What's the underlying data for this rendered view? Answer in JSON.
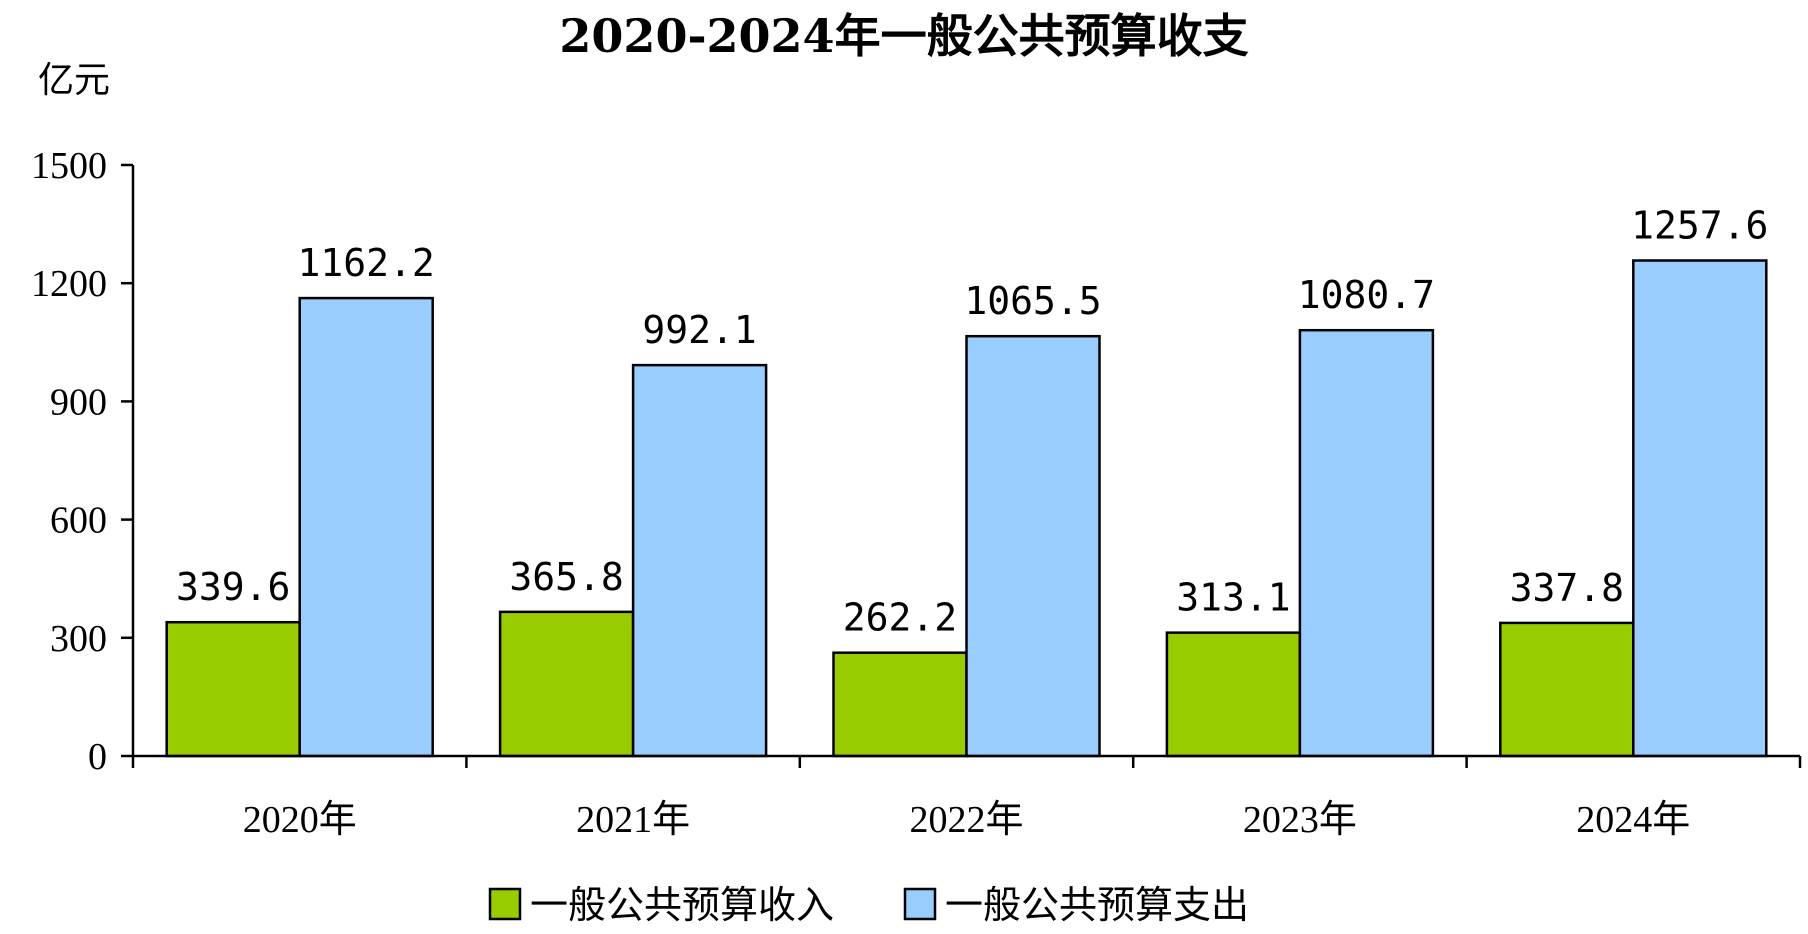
{
  "chart_data": {
    "type": "bar",
    "title": "2020-2024年一般公共预算收支",
    "unit_label": "亿元",
    "categories": [
      "2020年",
      "2021年",
      "2022年",
      "2023年",
      "2024年"
    ],
    "series": [
      {
        "name": "一般公共预算收入",
        "color": "#99cc00",
        "values": [
          339.6,
          365.8,
          262.2,
          313.1,
          337.8
        ]
      },
      {
        "name": "一般公共预算支出",
        "color": "#99ccff",
        "values": [
          1162.2,
          992.1,
          1065.5,
          1080.7,
          1257.6
        ]
      }
    ],
    "ylim": [
      0,
      1500
    ],
    "yticks": [
      0,
      300,
      600,
      900,
      1200,
      1500
    ],
    "value_labels": [
      [
        "339.6",
        "365.8",
        "262.2",
        "313.1",
        "337.8"
      ],
      [
        "1162.2",
        "992.1",
        "1065.5",
        "1080.7",
        "1257.6"
      ]
    ],
    "grid": false,
    "legend_position": "bottom"
  }
}
